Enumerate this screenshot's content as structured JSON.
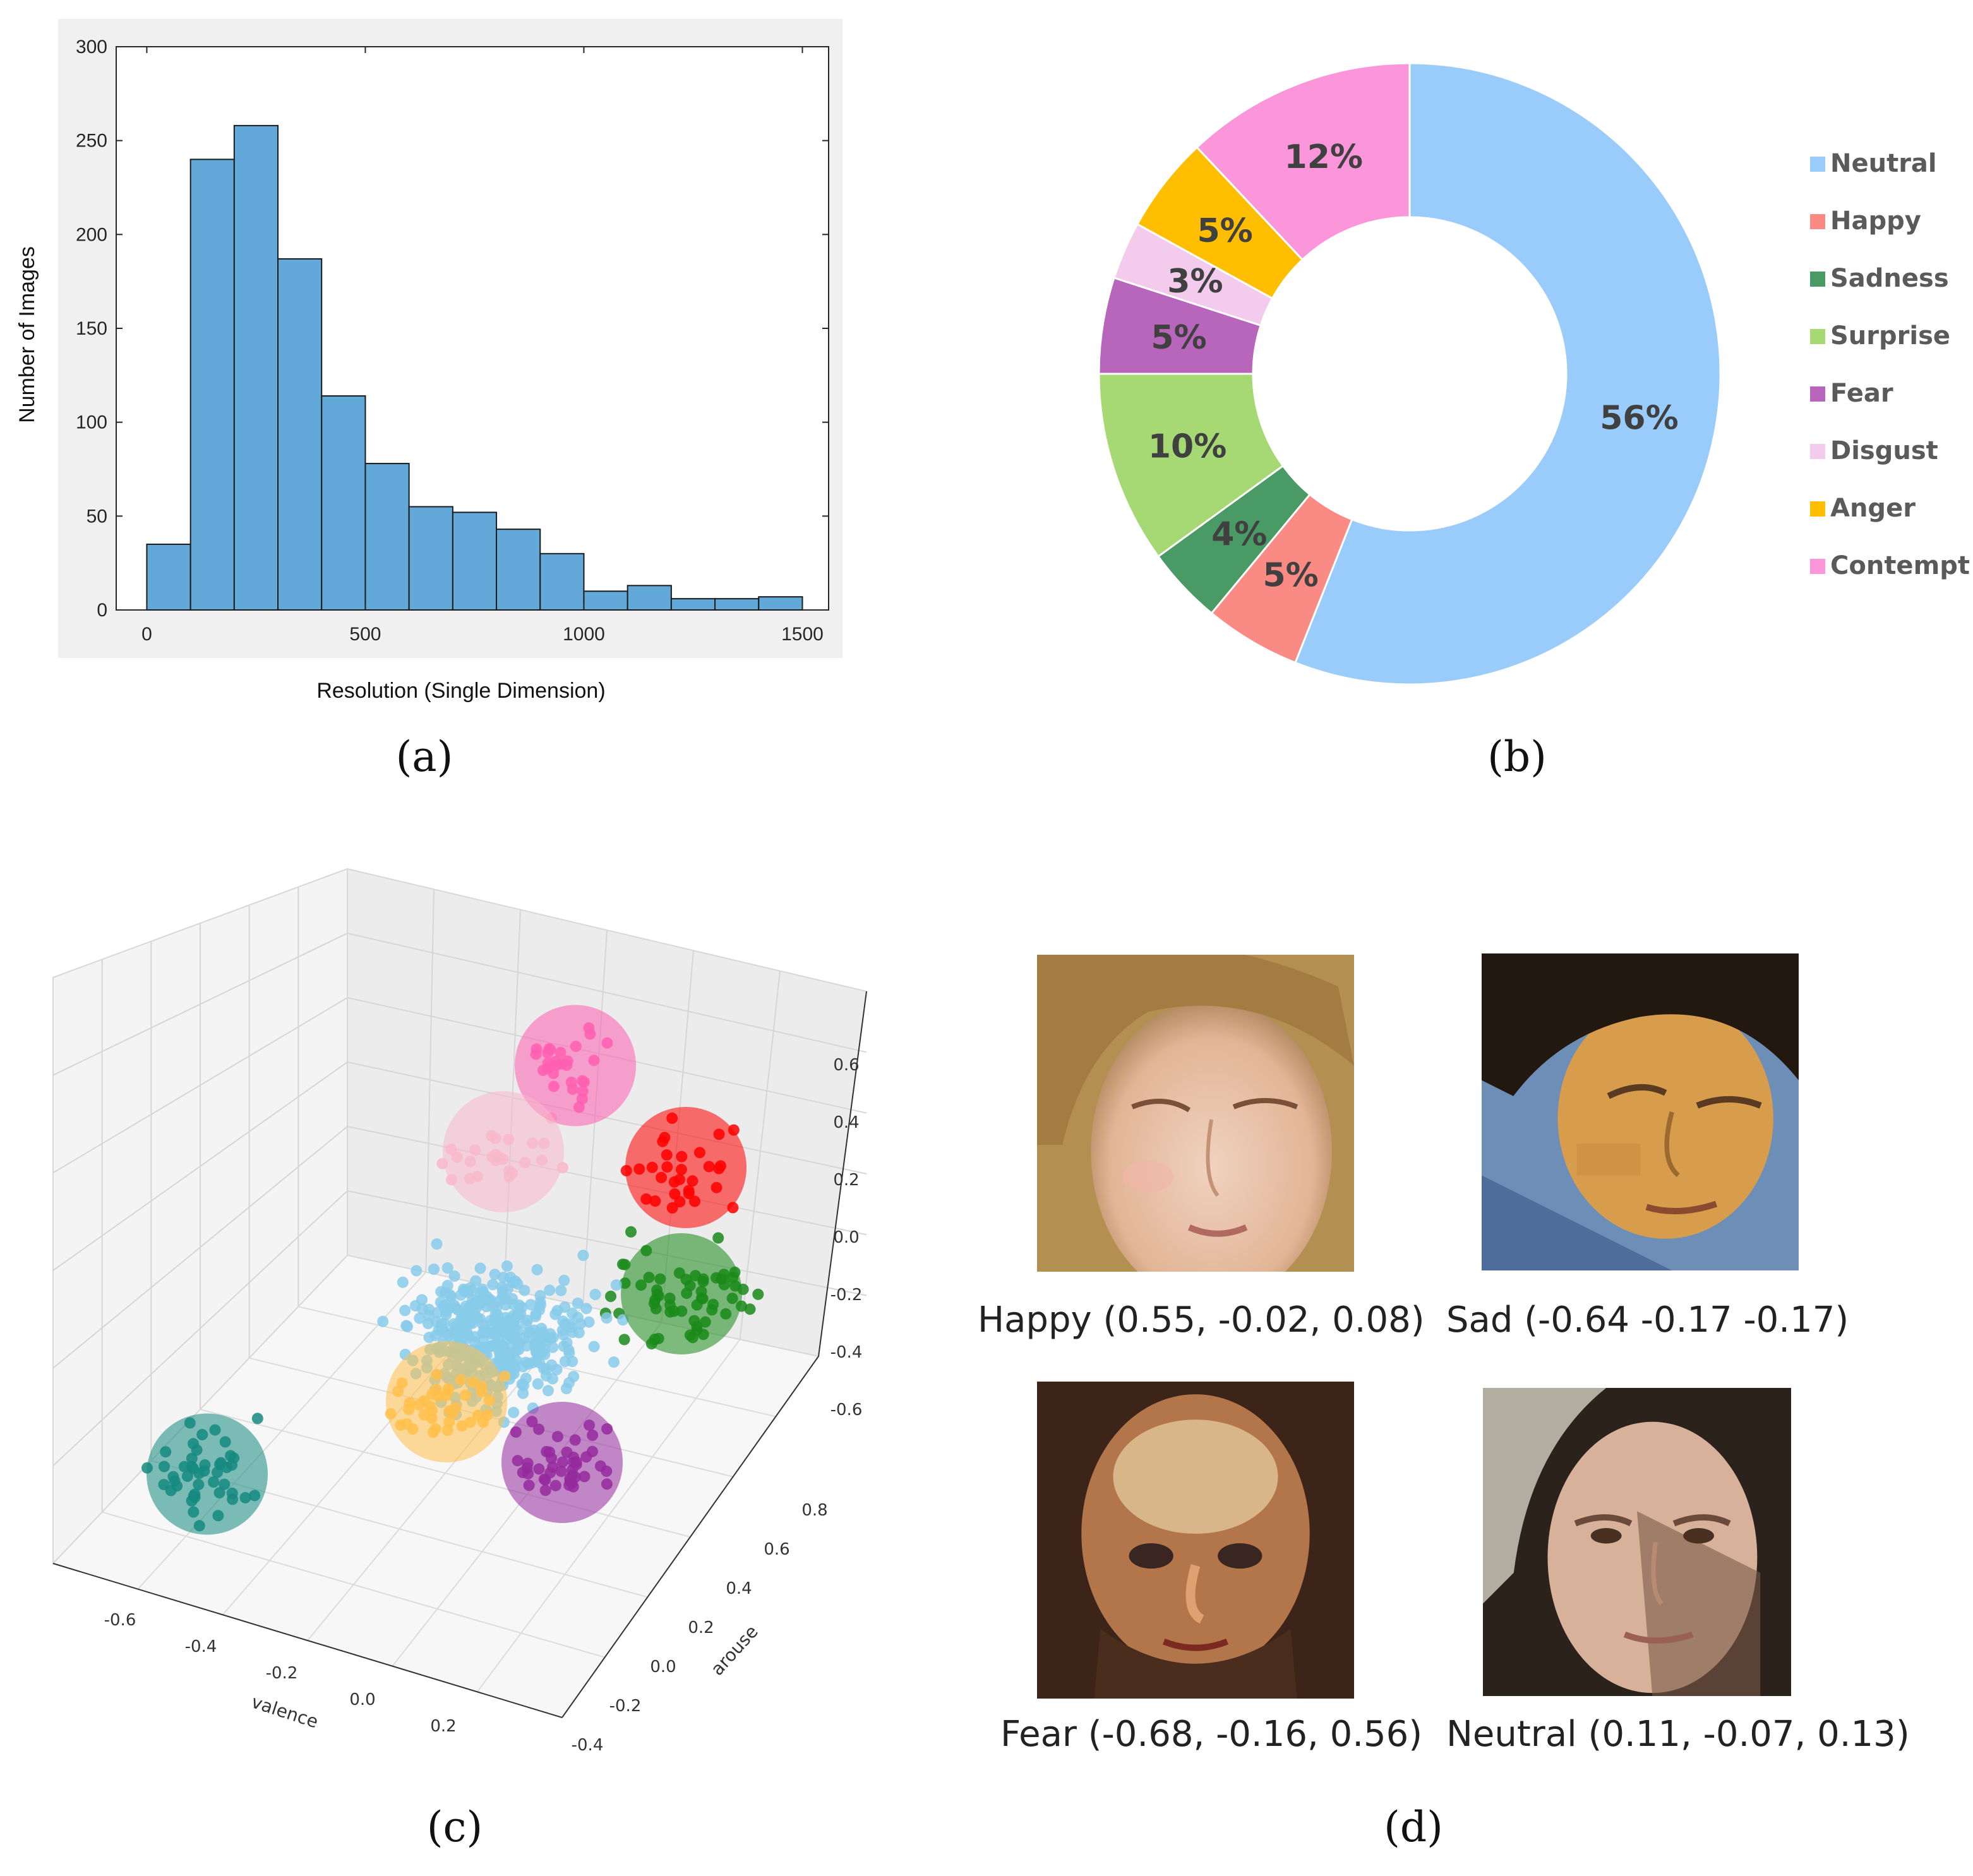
{
  "chart_data": [
    {
      "id": "a",
      "type": "bar",
      "caption": "(a)",
      "xlabel": "Resolution (Single Dimension)",
      "ylabel": "Number of Images",
      "xlim": [
        -70,
        1560
      ],
      "ylim": [
        0,
        300
      ],
      "xticks": [
        0,
        500,
        1000,
        1500
      ],
      "yticks": [
        0,
        50,
        100,
        150,
        200,
        250,
        300
      ],
      "bin_width": 100,
      "bins": [
        {
          "start": 0,
          "value": 35
        },
        {
          "start": 100,
          "value": 240
        },
        {
          "start": 200,
          "value": 258
        },
        {
          "start": 300,
          "value": 187
        },
        {
          "start": 400,
          "value": 114
        },
        {
          "start": 500,
          "value": 78
        },
        {
          "start": 600,
          "value": 55
        },
        {
          "start": 700,
          "value": 52
        },
        {
          "start": 800,
          "value": 43
        },
        {
          "start": 900,
          "value": 30
        },
        {
          "start": 1000,
          "value": 10
        },
        {
          "start": 1100,
          "value": 13
        },
        {
          "start": 1200,
          "value": 6
        },
        {
          "start": 1300,
          "value": 6
        },
        {
          "start": 1400,
          "value": 7
        }
      ],
      "bar_color": "#62a8d8",
      "grid": false
    },
    {
      "id": "b",
      "type": "pie",
      "caption": "(b)",
      "donut": true,
      "legend_position": "right",
      "slices": [
        {
          "label": "Neutral",
          "value": 56,
          "text": "56%",
          "color": "#99ccfa"
        },
        {
          "label": "Happy",
          "value": 5,
          "text": "5%",
          "color": "#fa8a84"
        },
        {
          "label": "Sadness",
          "value": 4,
          "text": "4%",
          "color": "#4a9a66"
        },
        {
          "label": "Surprise",
          "value": 10,
          "text": "10%",
          "color": "#a6d974"
        },
        {
          "label": "Fear",
          "value": 5,
          "text": "5%",
          "color": "#b866bb"
        },
        {
          "label": "Disgust",
          "value": 3,
          "text": "3%",
          "color": "#f2cbed"
        },
        {
          "label": "Anger",
          "value": 5,
          "text": "5%",
          "color": "#ffbf00"
        },
        {
          "label": "Contempt",
          "value": 12,
          "text": "12%",
          "color": "#fc96da"
        }
      ]
    },
    {
      "id": "c",
      "type": "scatter",
      "caption": "(c)",
      "projection": "3d",
      "xlabel": "valence",
      "ylabel": "arouse",
      "zlabel": "",
      "xticks": [
        "-0.6",
        "-0.4",
        "-0.2",
        "0.0",
        "0.2"
      ],
      "yticks": [
        "-0.4",
        "-0.2",
        "0.0",
        "0.2",
        "0.4",
        "0.6",
        "0.8"
      ],
      "zticks": [
        "0.6",
        "0.4",
        "0.2",
        "0.0",
        "-0.2",
        "-0.4",
        "-0.6"
      ],
      "clusters": [
        {
          "color": "#ff5fb0",
          "center": [
            0.1,
            0.35,
            0.55
          ]
        },
        {
          "color": "#ff0000",
          "center": [
            0.35,
            0.3,
            0.3
          ]
        },
        {
          "color": "#f8b8cc",
          "center": [
            -0.05,
            0.35,
            0.3
          ]
        },
        {
          "color": "#1a8a1a",
          "center": [
            0.4,
            0.15,
            0.0
          ]
        },
        {
          "color": "#87cbea",
          "center": [
            0.05,
            0.05,
            -0.1
          ]
        },
        {
          "color": "#ffc04a",
          "center": [
            -0.05,
            0.05,
            -0.3
          ]
        },
        {
          "color": "#952a9c",
          "center": [
            0.25,
            -0.1,
            -0.4
          ]
        },
        {
          "color": "#158a80",
          "center": [
            -0.45,
            -0.2,
            -0.45
          ]
        }
      ]
    }
  ],
  "faces": [
    {
      "label": "Happy (0.55, -0.02, 0.08)",
      "icon": "happy-face-portrait"
    },
    {
      "label": "Sad (-0.64 -0.17 -0.17)",
      "icon": "sad-face-portrait"
    },
    {
      "label": "Fear (-0.68, -0.16, 0.56)",
      "icon": "fear-face-portrait"
    },
    {
      "label": "Neutral (0.11, -0.07, 0.13)",
      "icon": "neutral-face-portrait"
    }
  ],
  "face_caption": "(d)"
}
